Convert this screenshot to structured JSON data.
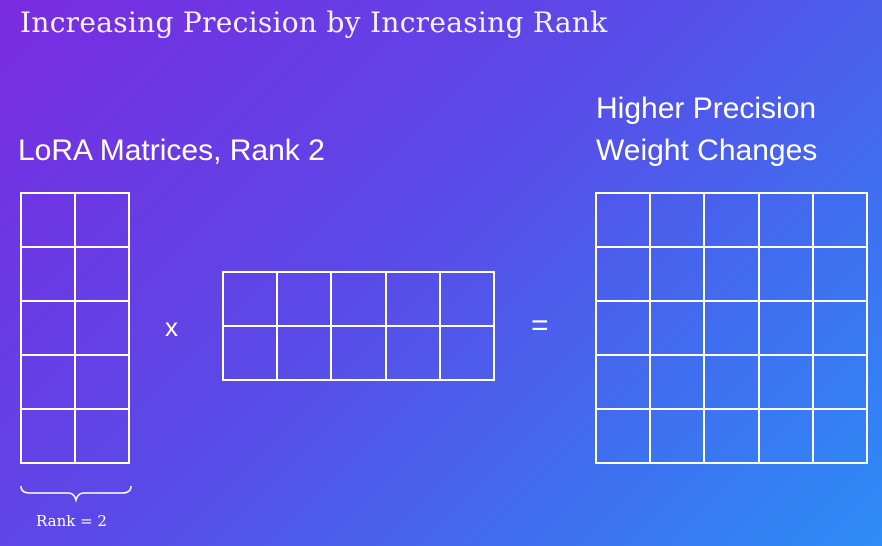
{
  "title": "Increasing Precision by Increasing Rank",
  "left_heading": "LoRA Matrices, Rank 2",
  "right_heading": {
    "line1": "Higher Precision",
    "line2": "Weight Changes"
  },
  "operators": {
    "multiply": "x",
    "equals": "="
  },
  "rank_label": "Rank = 2",
  "matrices": {
    "a": {
      "rows": 5,
      "cols": 2
    },
    "b": {
      "rows": 2,
      "cols": 5
    },
    "c": {
      "rows": 5,
      "cols": 5
    }
  },
  "colors": {
    "gradient_start": "#7a2be0",
    "gradient_end": "#2d8cf7",
    "lines": "#ffffff"
  }
}
